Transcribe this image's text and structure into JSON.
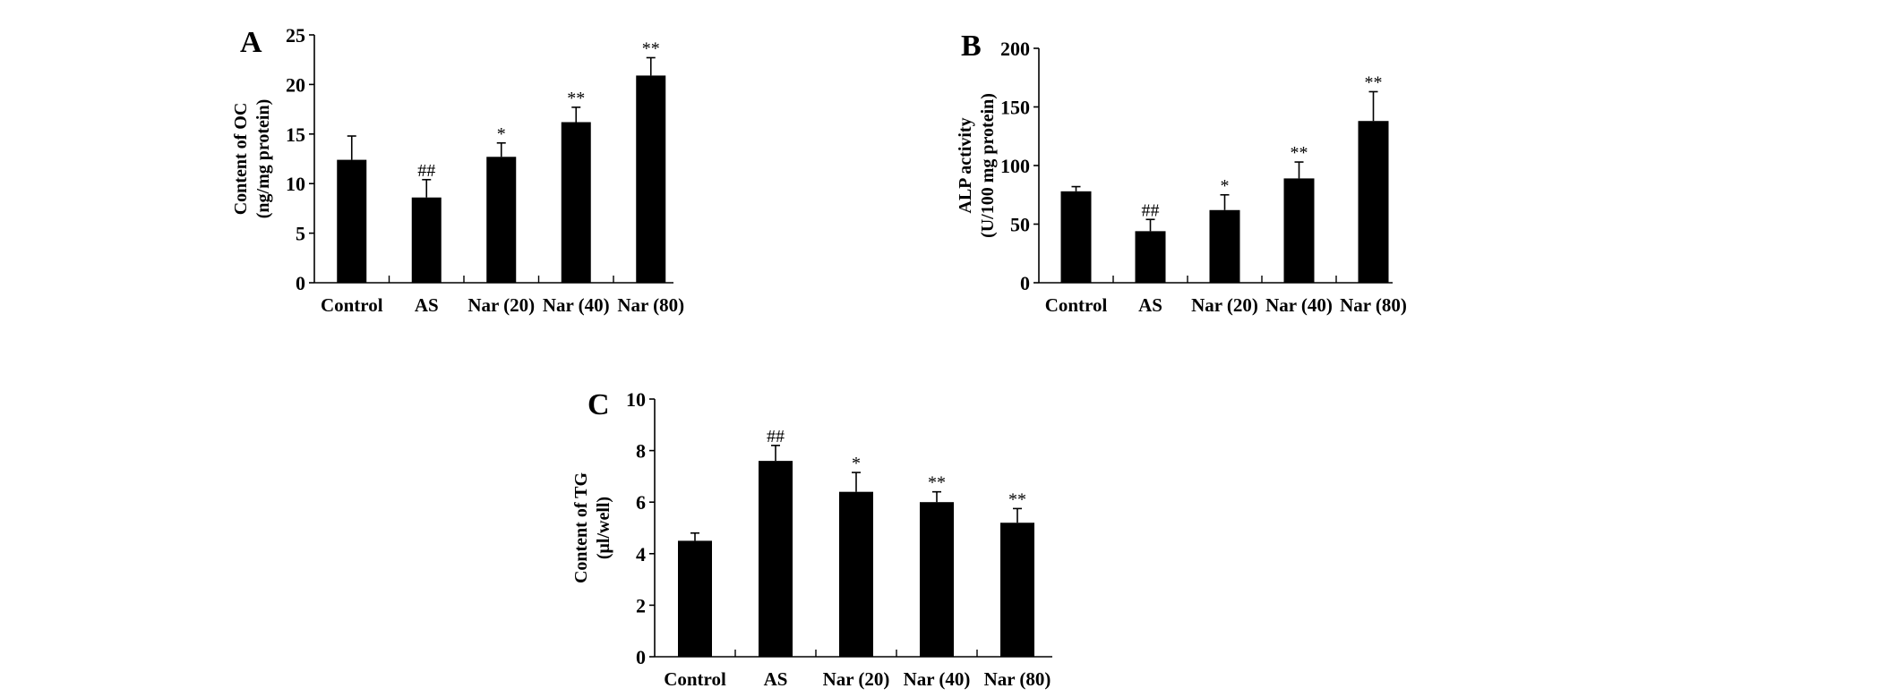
{
  "chart_data": [
    {
      "panel": "A",
      "type": "bar",
      "categories": [
        "Control",
        "AS",
        "Nar (20)",
        "Nar (40)",
        "Nar (80)"
      ],
      "values": [
        12.4,
        8.6,
        12.7,
        16.2,
        20.9
      ],
      "errors": [
        2.4,
        1.8,
        1.4,
        1.5,
        1.8
      ],
      "annotations": [
        "",
        "##",
        "*",
        "**",
        "**"
      ],
      "ylabel": [
        "Content of OC",
        "(ng/mg protein)"
      ],
      "ylim": [
        0,
        25
      ],
      "yticks": [
        0,
        5,
        10,
        15,
        20,
        25
      ],
      "grid": false
    },
    {
      "panel": "B",
      "type": "bar",
      "categories": [
        "Control",
        "AS",
        "Nar (20)",
        "Nar (40)",
        "Nar (80)"
      ],
      "values": [
        78,
        44,
        62,
        89,
        138
      ],
      "errors": [
        4,
        10,
        13,
        14,
        25
      ],
      "annotations": [
        "",
        "##",
        "*",
        "**",
        "**"
      ],
      "ylabel": [
        "ALP activity",
        "(U/100 mg protein)"
      ],
      "ylim": [
        0,
        200
      ],
      "yticks": [
        0,
        50,
        100,
        150,
        200
      ],
      "grid": false
    },
    {
      "panel": "C",
      "type": "bar",
      "categories": [
        "Control",
        "AS",
        "Nar (20)",
        "Nar (40)",
        "Nar (80)"
      ],
      "values": [
        4.5,
        7.6,
        6.4,
        6.0,
        5.2
      ],
      "errors": [
        0.3,
        0.6,
        0.75,
        0.4,
        0.55
      ],
      "annotations": [
        "",
        "##",
        "*",
        "**",
        "**"
      ],
      "ylabel": [
        "Content of TG",
        "(μl/well)"
      ],
      "ylim": [
        0,
        10
      ],
      "yticks": [
        0,
        2,
        4,
        6,
        8,
        10
      ],
      "grid": false
    }
  ]
}
